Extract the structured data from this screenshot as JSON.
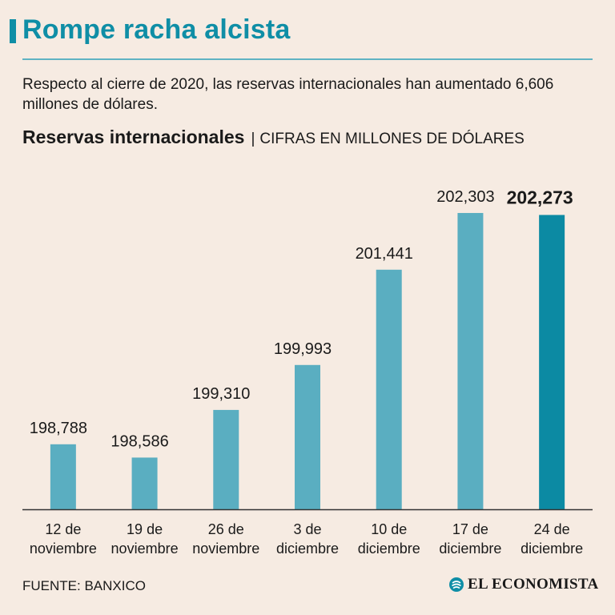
{
  "header": {
    "title": "Rompe racha alcista",
    "subtitle": "Respecto al cierre de 2020, las reservas internacionales han aumentado 6,606 millones de dólares.",
    "chart_title": "Reservas internacionales",
    "separator": "|",
    "units": "CIFRAS EN MILLONES DE DÓLARES"
  },
  "footer": {
    "source": "FUENTE: BANXICO",
    "brand": "EL ECONOMISTA",
    "brand_icon": "el-economista-logo-icon"
  },
  "colors": {
    "bar": "#5aaec1",
    "bar_highlight": "#0c8aa3",
    "accent": "#0f8ea6",
    "axis": "#333333"
  },
  "chart_data": {
    "type": "bar",
    "title": "Reservas internacionales",
    "ylabel": "Millones de dólares",
    "xlabel": "",
    "ylim": [
      197800,
      202400
    ],
    "categories": [
      [
        "12 de",
        "noviembre"
      ],
      [
        "19 de",
        "noviembre"
      ],
      [
        "26 de",
        "noviembre"
      ],
      [
        "3 de",
        "diciembre"
      ],
      [
        "10 de",
        "diciembre"
      ],
      [
        "17 de",
        "diciembre"
      ],
      [
        "24 de",
        "diciembre"
      ]
    ],
    "values": [
      198788,
      198586,
      199310,
      199993,
      201441,
      202303,
      202273
    ],
    "value_labels": [
      "198,788",
      "198,586",
      "199,310",
      "199,993",
      "201,441",
      "202,303",
      "202,273"
    ],
    "highlight_index": 6
  }
}
